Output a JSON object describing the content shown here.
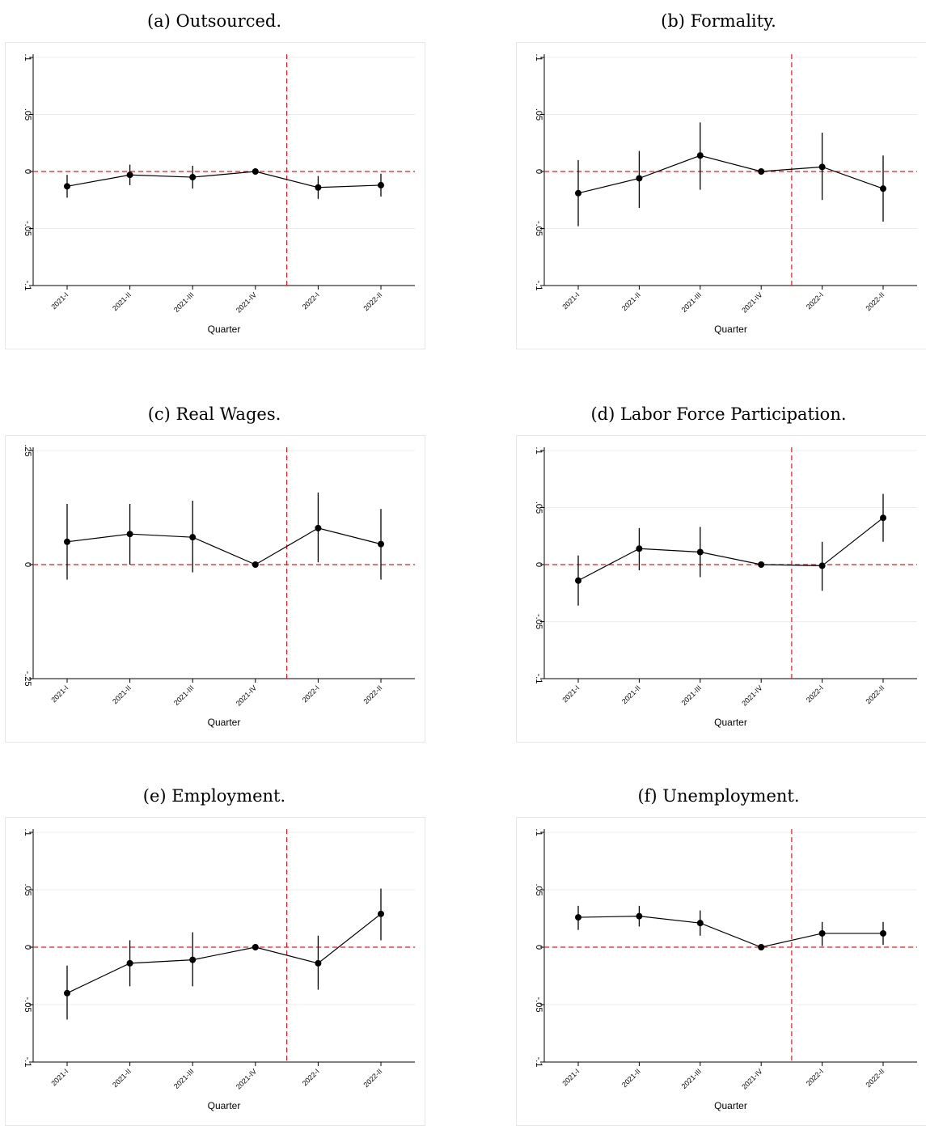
{
  "categories": [
    "2021-I",
    "2021-II",
    "2021-III",
    "2021-IV",
    "2022-I",
    "2022-II"
  ],
  "chart_data": [
    {
      "type": "line",
      "title": "(a) Outsourced.",
      "xlabel": "Quarter",
      "ylabel": "",
      "categories": [
        "2021-I",
        "2021-II",
        "2021-III",
        "2021-IV",
        "2022-I",
        "2022-II"
      ],
      "values": [
        -0.013,
        -0.003,
        -0.005,
        0.0,
        -0.014,
        -0.012
      ],
      "ci_low": [
        -0.023,
        -0.012,
        -0.015,
        0.0,
        -0.024,
        -0.022
      ],
      "ci_high": [
        -0.003,
        0.006,
        0.005,
        0.0,
        -0.004,
        -0.002
      ],
      "ylim": [
        -0.1,
        0.1
      ],
      "yticks": [
        ".1",
        ".05",
        "0",
        "-.05",
        "-.1"
      ],
      "ytick_values": [
        0.1,
        0.05,
        0,
        -0.05,
        -0.1
      ],
      "vline_between": [
        3,
        4
      ],
      "hline": 0,
      "grid": true,
      "colors": {
        "line": "#000000",
        "ref": "#e41a1c",
        "grid": "#ececec"
      }
    },
    {
      "type": "line",
      "title": "(b) Formality.",
      "xlabel": "Quarter",
      "ylabel": "",
      "categories": [
        "2021-I",
        "2021-II",
        "2021-III",
        "2021-IV",
        "2022-I",
        "2022-II"
      ],
      "values": [
        -0.019,
        -0.006,
        0.014,
        0.0,
        0.004,
        -0.015
      ],
      "ci_low": [
        -0.048,
        -0.032,
        -0.016,
        0.0,
        -0.025,
        -0.044
      ],
      "ci_high": [
        0.01,
        0.018,
        0.043,
        0.0,
        0.034,
        0.014
      ],
      "ylim": [
        -0.1,
        0.1
      ],
      "yticks": [
        ".1",
        ".05",
        "0",
        "-.05",
        "-.1"
      ],
      "ytick_values": [
        0.1,
        0.05,
        0,
        -0.05,
        -0.1
      ],
      "vline_between": [
        3,
        4
      ],
      "hline": 0,
      "grid": true,
      "colors": {
        "line": "#000000",
        "ref": "#e41a1c",
        "grid": "#ececec"
      }
    },
    {
      "type": "line",
      "title": "(c) Real Wages.",
      "xlabel": "Quarter",
      "ylabel": "",
      "categories": [
        "2021-I",
        "2021-II",
        "2021-III",
        "2021-IV",
        "2022-I",
        "2022-II"
      ],
      "values": [
        0.05,
        0.067,
        0.06,
        0.0,
        0.08,
        0.045
      ],
      "ci_low": [
        -0.033,
        0.0,
        -0.017,
        0.0,
        0.005,
        -0.033
      ],
      "ci_high": [
        0.133,
        0.133,
        0.14,
        0.0,
        0.158,
        0.122
      ],
      "ylim": [
        -0.25,
        0.25
      ],
      "yticks": [
        ".25",
        "0",
        "-.25"
      ],
      "ytick_values": [
        0.25,
        0,
        -0.25
      ],
      "vline_between": [
        3,
        4
      ],
      "hline": 0,
      "grid": true,
      "colors": {
        "line": "#000000",
        "ref": "#e41a1c",
        "grid": "#ececec"
      }
    },
    {
      "type": "line",
      "title": "(d) Labor Force Participation.",
      "xlabel": "Quarter",
      "ylabel": "",
      "categories": [
        "2021-I",
        "2021-II",
        "2021-III",
        "2021-IV",
        "2022-I",
        "2022-II"
      ],
      "values": [
        -0.014,
        0.014,
        0.011,
        0.0,
        -0.001,
        0.041
      ],
      "ci_low": [
        -0.036,
        -0.005,
        -0.011,
        0.0,
        -0.023,
        0.02
      ],
      "ci_high": [
        0.008,
        0.032,
        0.033,
        0.0,
        0.02,
        0.062
      ],
      "ylim": [
        -0.1,
        0.1
      ],
      "yticks": [
        ".1",
        ".05",
        "0",
        "-.05",
        "-.1"
      ],
      "ytick_values": [
        0.1,
        0.05,
        0,
        -0.05,
        -0.1
      ],
      "vline_between": [
        3,
        4
      ],
      "hline": 0,
      "grid": true,
      "colors": {
        "line": "#000000",
        "ref": "#e41a1c",
        "grid": "#ececec"
      }
    },
    {
      "type": "line",
      "title": "(e) Employment.",
      "xlabel": "Quarter",
      "ylabel": "",
      "categories": [
        "2021-I",
        "2021-II",
        "2021-III",
        "2021-IV",
        "2022-I",
        "2022-II"
      ],
      "values": [
        -0.04,
        -0.014,
        -0.011,
        0.0,
        -0.014,
        0.029
      ],
      "ci_low": [
        -0.063,
        -0.034,
        -0.034,
        0.0,
        -0.037,
        0.006
      ],
      "ci_high": [
        -0.016,
        0.006,
        0.013,
        0.0,
        0.01,
        0.051
      ],
      "ylim": [
        -0.1,
        0.1
      ],
      "yticks": [
        ".1",
        ".05",
        "0",
        "-.05",
        "-.1"
      ],
      "ytick_values": [
        0.1,
        0.05,
        0,
        -0.05,
        -0.1
      ],
      "vline_between": [
        3,
        4
      ],
      "hline": 0,
      "grid": true,
      "colors": {
        "line": "#000000",
        "ref": "#e41a1c",
        "grid": "#ececec"
      }
    },
    {
      "type": "line",
      "title": "(f) Unemployment.",
      "xlabel": "Quarter",
      "ylabel": "",
      "categories": [
        "2021-I",
        "2021-II",
        "2021-III",
        "2021-IV",
        "2022-I",
        "2022-II"
      ],
      "values": [
        0.026,
        0.027,
        0.021,
        0.0,
        0.012,
        0.012
      ],
      "ci_low": [
        0.015,
        0.018,
        0.01,
        0.0,
        0.001,
        0.002
      ],
      "ci_high": [
        0.036,
        0.036,
        0.032,
        0.0,
        0.022,
        0.022
      ],
      "ylim": [
        -0.1,
        0.1
      ],
      "yticks": [
        ".1",
        ".05",
        "0",
        "-.05",
        "-.1"
      ],
      "ytick_values": [
        0.1,
        0.05,
        0,
        -0.05,
        -0.1
      ],
      "vline_between": [
        3,
        4
      ],
      "hline": 0,
      "grid": true,
      "colors": {
        "line": "#000000",
        "ref": "#e41a1c",
        "grid": "#ececec"
      }
    }
  ]
}
